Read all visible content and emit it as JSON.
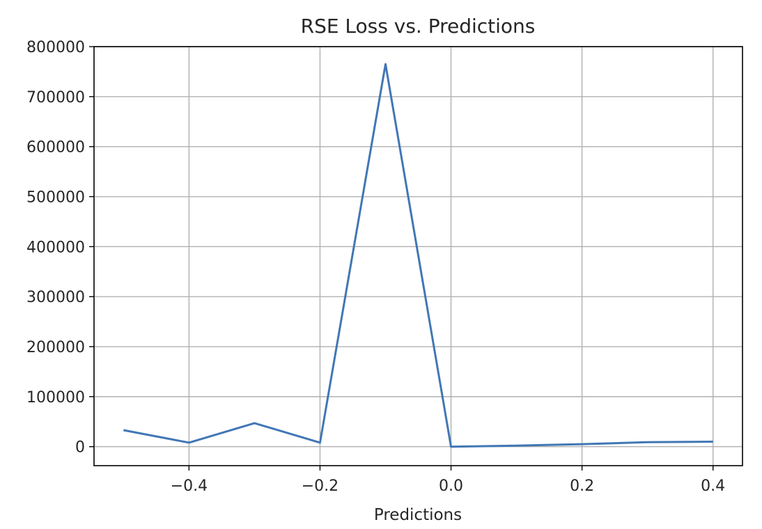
{
  "chart_data": {
    "type": "line",
    "title": "RSE Loss vs. Predictions",
    "xlabel": "Predictions",
    "ylabel": "",
    "xlim": [
      -0.545,
      0.445
    ],
    "ylim": [
      -38000,
      800000
    ],
    "grid": true,
    "x_ticks": [
      -0.4,
      -0.2,
      0.0,
      0.2,
      0.4
    ],
    "x_tick_labels": [
      "−0.4",
      "−0.2",
      "0.0",
      "0.2",
      "0.4"
    ],
    "y_ticks": [
      0,
      100000,
      200000,
      300000,
      400000,
      500000,
      600000,
      700000,
      800000
    ],
    "y_tick_labels": [
      "0",
      "100000",
      "200000",
      "300000",
      "400000",
      "500000",
      "600000",
      "700000",
      "800000"
    ],
    "series": [
      {
        "color": "#4177b5",
        "x": [
          -0.5,
          -0.4,
          -0.3,
          -0.2,
          -0.1,
          0.0,
          0.1,
          0.2,
          0.3,
          0.4
        ],
        "y": [
          33000,
          8000,
          47000,
          8000,
          765000,
          0,
          2000,
          5000,
          9000,
          10000
        ]
      }
    ]
  }
}
